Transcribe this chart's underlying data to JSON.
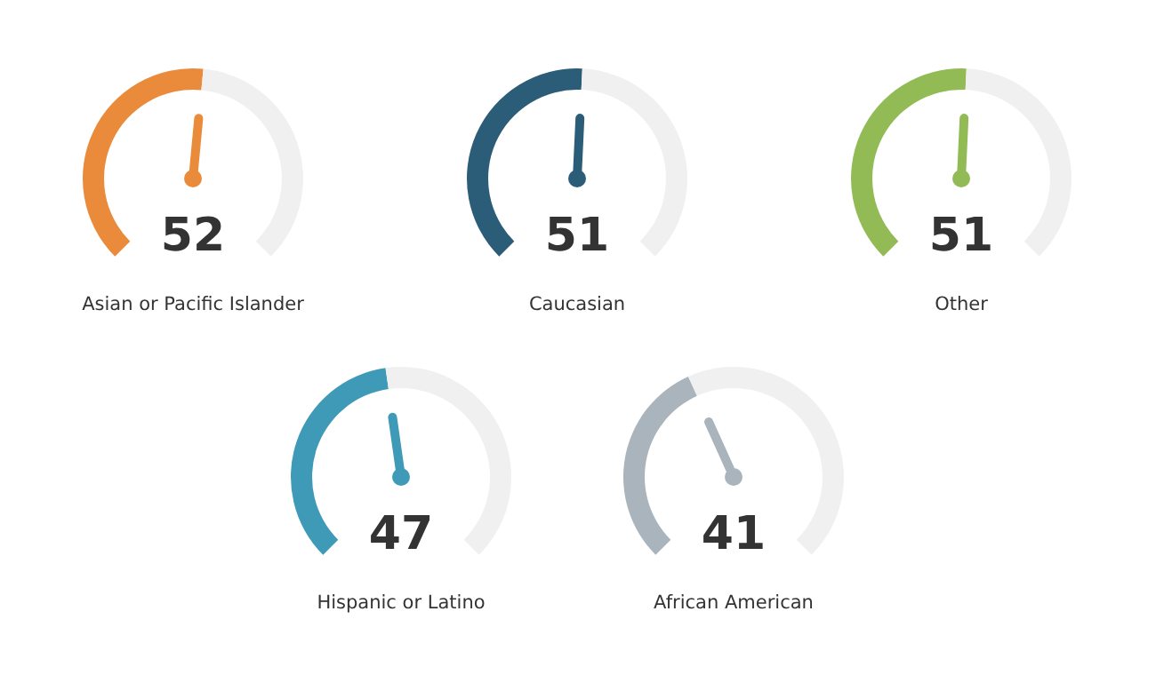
{
  "chart_data": [
    {
      "type": "donut",
      "title": "Asian or Pacific Islander",
      "categories": [
        null,
        null
      ],
      "values": [
        52,
        48
      ],
      "colors": [
        "#e98b3a",
        "#f0f0f0"
      ],
      "annotations": [
        "52"
      ]
    },
    {
      "type": "donut",
      "title": "Caucasian",
      "categories": [
        null,
        null
      ],
      "values": [
        51,
        49
      ],
      "colors": [
        "#2b5d78",
        "#f0f0f0"
      ],
      "annotations": [
        "51"
      ]
    },
    {
      "type": "donut",
      "title": "Other",
      "categories": [
        null,
        null
      ],
      "values": [
        51,
        49
      ],
      "colors": [
        "#93bb55",
        "#f0f0f0"
      ],
      "annotations": [
        "51"
      ]
    },
    {
      "type": "donut",
      "title": "Hispanic or Latino",
      "categories": [
        null,
        null
      ],
      "values": [
        47,
        53
      ],
      "colors": [
        "#3f9ab8",
        "#f0f0f0"
      ],
      "annotations": [
        "47"
      ]
    },
    {
      "type": "donut",
      "title": "African American",
      "categories": [
        null,
        null
      ],
      "values": [
        41,
        59
      ],
      "colors": [
        "#a9b4bd",
        "#f0f0f0"
      ],
      "annotations": [
        "41"
      ]
    }
  ]
}
